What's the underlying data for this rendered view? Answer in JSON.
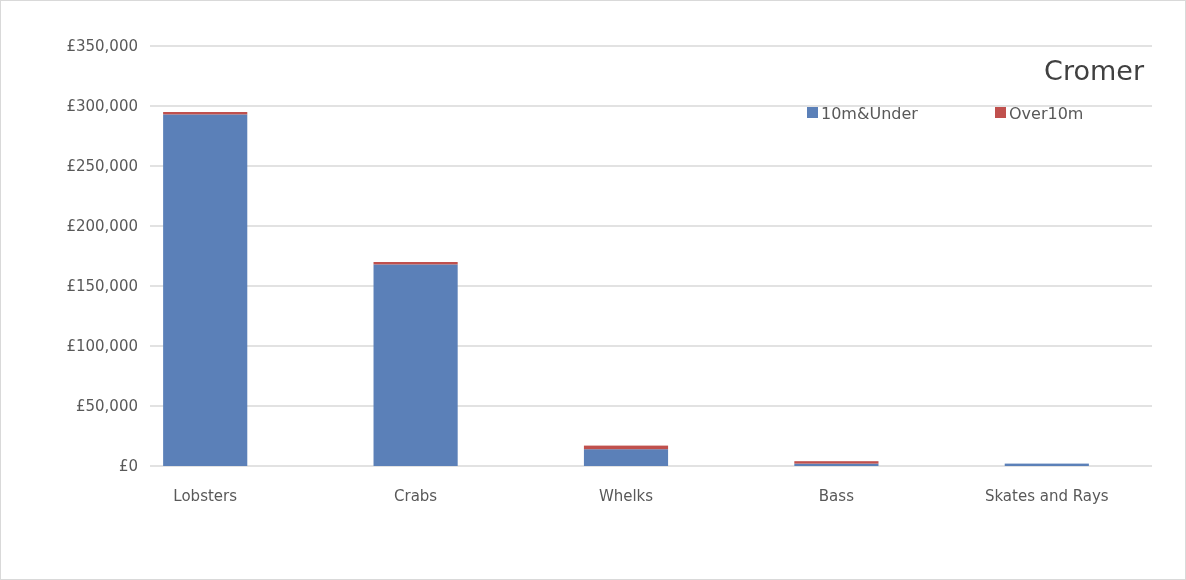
{
  "chart_data": {
    "type": "bar",
    "title": "Cromer",
    "stacked": true,
    "categories": [
      "Lobsters",
      "Crabs",
      "Whelks",
      "Bass",
      "Skates and Rays"
    ],
    "series": [
      {
        "name": "10m&Under",
        "color": "#5b80b8",
        "values": [
          293000,
          168000,
          14000,
          2000,
          2000
        ]
      },
      {
        "name": "Over10m",
        "color": "#c0504d",
        "values": [
          2000,
          2000,
          3000,
          2000,
          0
        ]
      }
    ],
    "ylim": [
      0,
      350000
    ],
    "yticks": [
      {
        "value": 0,
        "label": "£0"
      },
      {
        "value": 50000,
        "label": "£50,000"
      },
      {
        "value": 100000,
        "label": "£100,000"
      },
      {
        "value": 150000,
        "label": "£150,000"
      },
      {
        "value": 200000,
        "label": "£200,000"
      },
      {
        "value": 250000,
        "label": "£250,000"
      },
      {
        "value": 300000,
        "label": "£300,000"
      },
      {
        "value": 350000,
        "label": "£350,000"
      }
    ],
    "grid": "y",
    "legend": "top right"
  }
}
